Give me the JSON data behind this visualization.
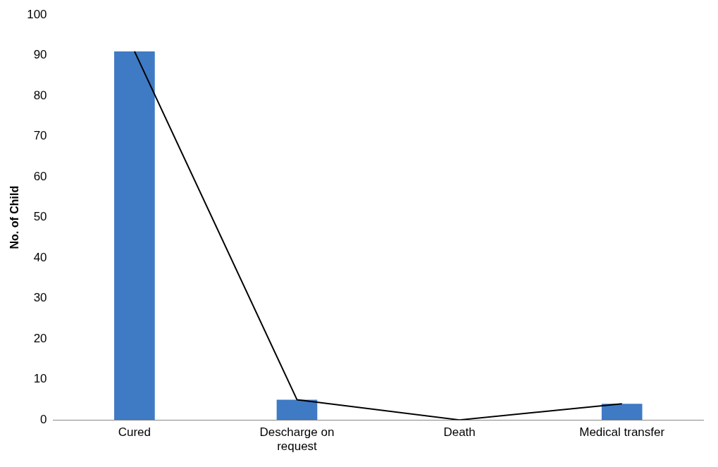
{
  "chart_data": {
    "type": "bar",
    "ylabel": "No. of Child",
    "categories": [
      "Cured",
      "Descharge on request",
      "Death",
      "Medical transfer"
    ],
    "series": [
      {
        "color": "#3f7ac4",
        "values": [
          91,
          5,
          0,
          4
        ]
      },
      {
        "type": "line",
        "color": "#000000",
        "values": [
          91,
          5,
          0,
          4
        ]
      }
    ],
    "ylim": [
      0,
      100
    ],
    "yticks": [
      0,
      10,
      20,
      30,
      40,
      50,
      60,
      70,
      80,
      90,
      100
    ],
    "grid": false,
    "legend": false,
    "marker": "none"
  }
}
